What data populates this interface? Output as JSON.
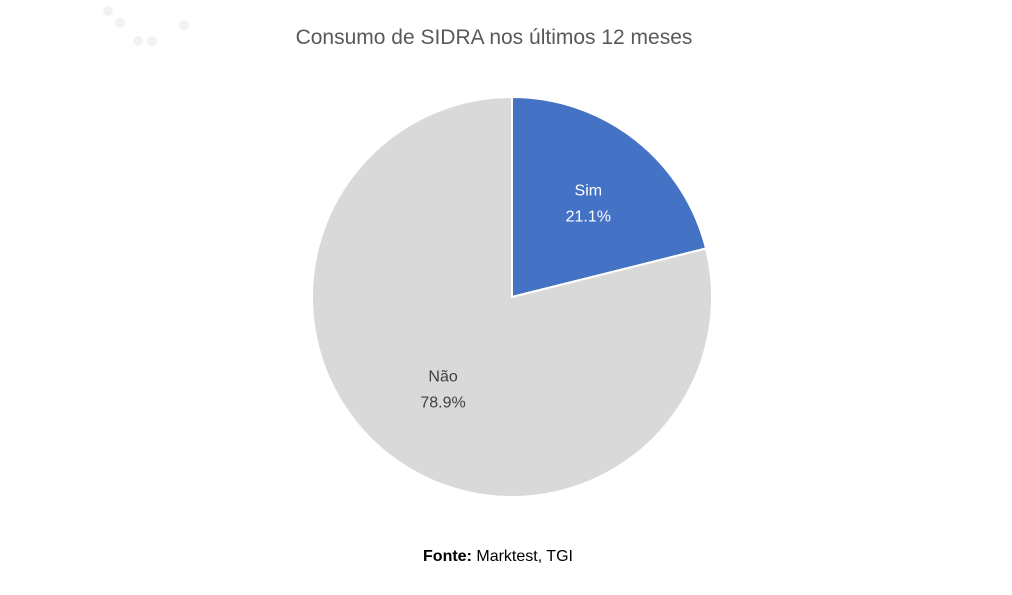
{
  "chart_data": {
    "type": "pie",
    "title": "Consumo de SIDRA nos últimos 12 meses",
    "slices": [
      {
        "label": "Sim",
        "value": 21.1,
        "display": "21.1%",
        "color": "#4472C4",
        "label_color": "#ffffff"
      },
      {
        "label": "Não",
        "value": 78.9,
        "display": "78.9%",
        "color": "#D9D9D9",
        "label_color": "#404040"
      }
    ],
    "legend": "none"
  },
  "source": {
    "label": "Fonte:",
    "text": "Marktest, TGI"
  }
}
